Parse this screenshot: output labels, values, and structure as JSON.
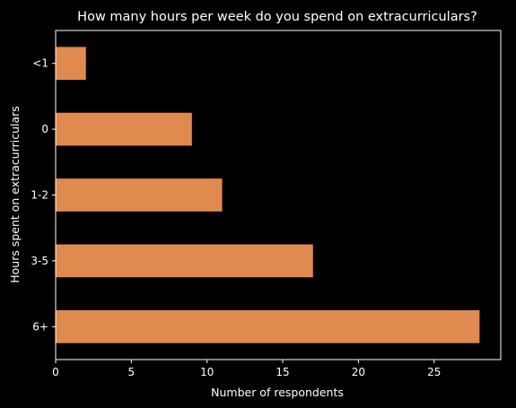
{
  "chart_data": {
    "type": "bar",
    "orientation": "horizontal",
    "title": "How many hours per week do you spend on extracurriculars?",
    "xlabel": "Number of respondents",
    "ylabel": "Hours spent on extracurriculars",
    "categories": [
      "<1",
      "0",
      "1-2",
      "3-5",
      "6+"
    ],
    "values": [
      2,
      9,
      11,
      17,
      28
    ],
    "xlim": [
      0,
      29.4
    ],
    "xticks": [
      0,
      5,
      10,
      15,
      20,
      25
    ],
    "grid": false,
    "bar_color": "#e08a50",
    "background_color": "#000000",
    "text_color": "#ffffff"
  }
}
